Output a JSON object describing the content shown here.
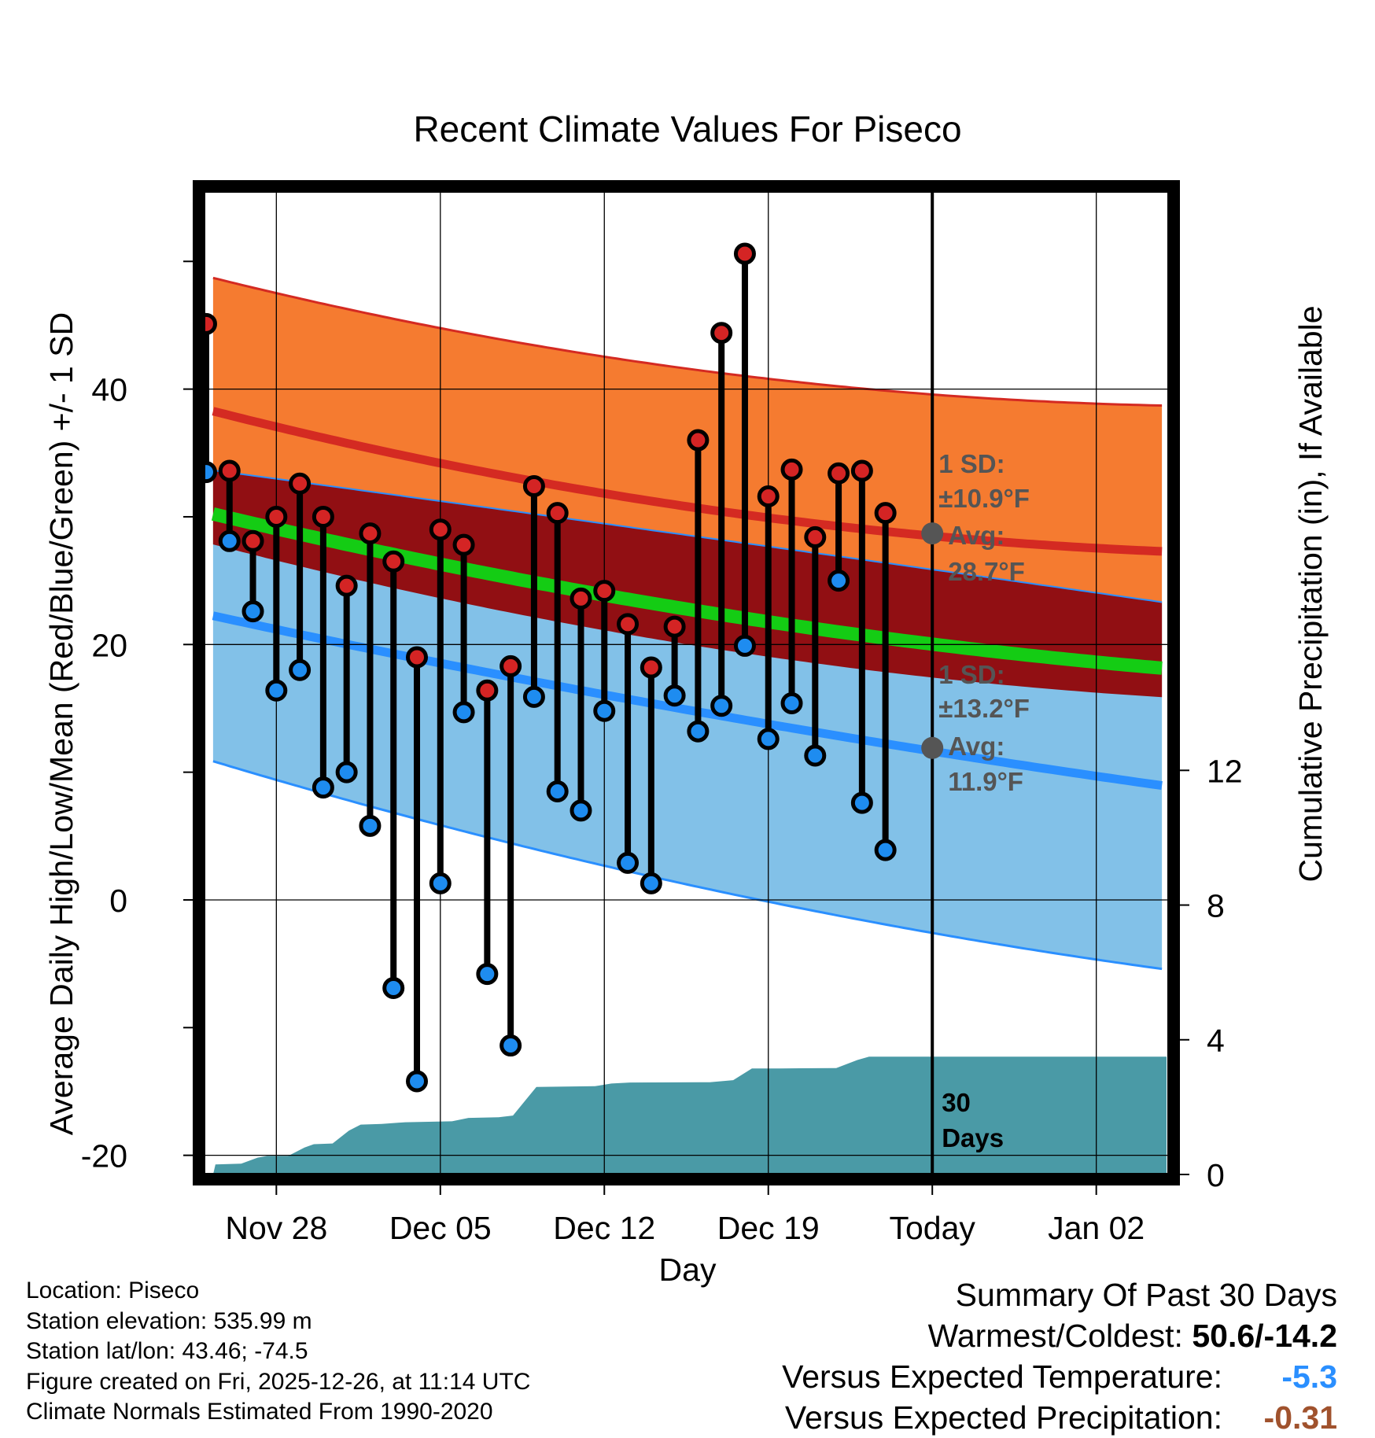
{
  "chart_data": {
    "type": "line",
    "title": "Recent Climate Values For Piseco",
    "xlabel": "Day",
    "ylabel_left": "Average Daily High/Low/Mean (Red/Blue/Green) +/- 1 SD",
    "ylabel_right": "Cumulative Precipitation (in), If Available",
    "x_ticks": [
      {
        "day": 4,
        "label": "Nov 28"
      },
      {
        "day": 11,
        "label": "Dec 05"
      },
      {
        "day": 18,
        "label": "Dec 12"
      },
      {
        "day": 25,
        "label": "Dec 19"
      },
      {
        "day": 32,
        "label": "Today"
      },
      {
        "day": 39,
        "label": "Jan 02"
      }
    ],
    "x_range": [
      0.9,
      42.1
    ],
    "today_day": 32,
    "y_left_range": [
      -21.5,
      55.5
    ],
    "y_left_ticks": [
      -20,
      0,
      20,
      40
    ],
    "y_right_range": [
      0,
      29.2
    ],
    "y_right_ticks": [
      0,
      4,
      8,
      12
    ],
    "normals": {
      "days": [
        1.3,
        11,
        21,
        32,
        42
      ],
      "high_mean": [
        38.3,
        34.2,
        30.8,
        28.7,
        27.2
      ],
      "high_sd_upper": [
        48.7,
        44.8,
        41.7,
        39.6,
        38.7
      ],
      "low_mean": [
        22.3,
        18.5,
        14.9,
        11.9,
        8.8
      ],
      "low_sd_lower": [
        11.0,
        5.7,
        1.1,
        -2.0,
        -5.7
      ],
      "avg_mean": [
        30.3,
        26.2,
        22.8,
        20.3,
        18.0
      ]
    },
    "series": [
      {
        "name": "High",
        "values": [
          45.1,
          33.6,
          28.1,
          30.0,
          32.6,
          30.0,
          24.6,
          28.7,
          26.5,
          19.0,
          29.0,
          27.8,
          16.4,
          18.3,
          32.4,
          30.3,
          23.6,
          24.2,
          21.6,
          18.2,
          21.4,
          36.0,
          44.4,
          50.6,
          31.6,
          33.7,
          28.4,
          33.4,
          33.6,
          30.3
        ]
      },
      {
        "name": "Low",
        "values": [
          33.5,
          28.1,
          22.6,
          16.4,
          18.0,
          8.8,
          10.0,
          5.8,
          -6.9,
          -14.2,
          1.3,
          14.7,
          -5.8,
          -11.4,
          15.9,
          8.5,
          7.0,
          14.8,
          2.9,
          1.3,
          16.0,
          13.2,
          15.2,
          19.9,
          12.6,
          15.4,
          11.3,
          25.0,
          7.6,
          3.9
        ]
      }
    ],
    "precip_cumulative": [
      {
        "day": 1.3,
        "value": 0
      },
      {
        "day": 1.4,
        "value": 0.3
      },
      {
        "day": 2.5,
        "value": 0.32
      },
      {
        "day": 3.2,
        "value": 0.5
      },
      {
        "day": 3.6,
        "value": 0.55
      },
      {
        "day": 4.5,
        "value": 0.55
      },
      {
        "day": 5.2,
        "value": 0.8
      },
      {
        "day": 5.6,
        "value": 0.9
      },
      {
        "day": 6.4,
        "value": 0.92
      },
      {
        "day": 7.1,
        "value": 1.3
      },
      {
        "day": 7.6,
        "value": 1.48
      },
      {
        "day": 8.5,
        "value": 1.5
      },
      {
        "day": 9.5,
        "value": 1.55
      },
      {
        "day": 11.5,
        "value": 1.58
      },
      {
        "day": 12.2,
        "value": 1.68
      },
      {
        "day": 13.5,
        "value": 1.7
      },
      {
        "day": 14.1,
        "value": 1.75
      },
      {
        "day": 15.1,
        "value": 2.6
      },
      {
        "day": 17.6,
        "value": 2.62
      },
      {
        "day": 18.3,
        "value": 2.7
      },
      {
        "day": 19.1,
        "value": 2.73
      },
      {
        "day": 22.5,
        "value": 2.74
      },
      {
        "day": 23.5,
        "value": 2.8
      },
      {
        "day": 24.3,
        "value": 3.15
      },
      {
        "day": 25.5,
        "value": 3.15
      },
      {
        "day": 27.9,
        "value": 3.16
      },
      {
        "day": 28.8,
        "value": 3.4
      },
      {
        "day": 29.3,
        "value": 3.5
      },
      {
        "day": 42,
        "value": 3.5
      }
    ],
    "annotations": {
      "high_sd_line1": "1 SD:",
      "high_sd_line2": "±10.9°F",
      "high_avg_line1": "Avg:",
      "high_avg_line2": "28.7°F",
      "low_sd_line1": "1 SD:",
      "low_sd_line2": "±13.2°F",
      "low_avg_line1": "Avg:",
      "low_avg_line2": "11.9°F",
      "days_line1": "30",
      "days_line2": "Days"
    },
    "colors": {
      "high_band": "#f57b30",
      "high_line": "#d42a22",
      "overlap_band": "#910f13",
      "mean_line": "#14cc14",
      "low_band": "#82c1e8",
      "low_line": "#2a8fff",
      "precip_fill": "#4a9aa6",
      "high_dot": "#d42424",
      "low_dot": "#1e8cf0",
      "avg_dot": "#555555"
    }
  },
  "metadata": {
    "location": "Location: Piseco",
    "elevation": "Station elevation: 535.99 m",
    "latlon": "Station lat/lon: 43.46; -74.5",
    "created": "Figure created on Fri, 2025-12-26, at 11:14 UTC",
    "normals": "Climate Normals Estimated From 1990-2020"
  },
  "summary": {
    "title": "Summary Of Past 30 Days",
    "warmest_label": "Warmest/Coldest:",
    "warmest_value": "50.6/-14.2",
    "temp_label": "Versus Expected Temperature:",
    "temp_value": "-5.3",
    "temp_color": "#2a8fff",
    "precip_label": "Versus Expected Precipitation:",
    "precip_value": "-0.31",
    "precip_color": "#a0522d"
  }
}
